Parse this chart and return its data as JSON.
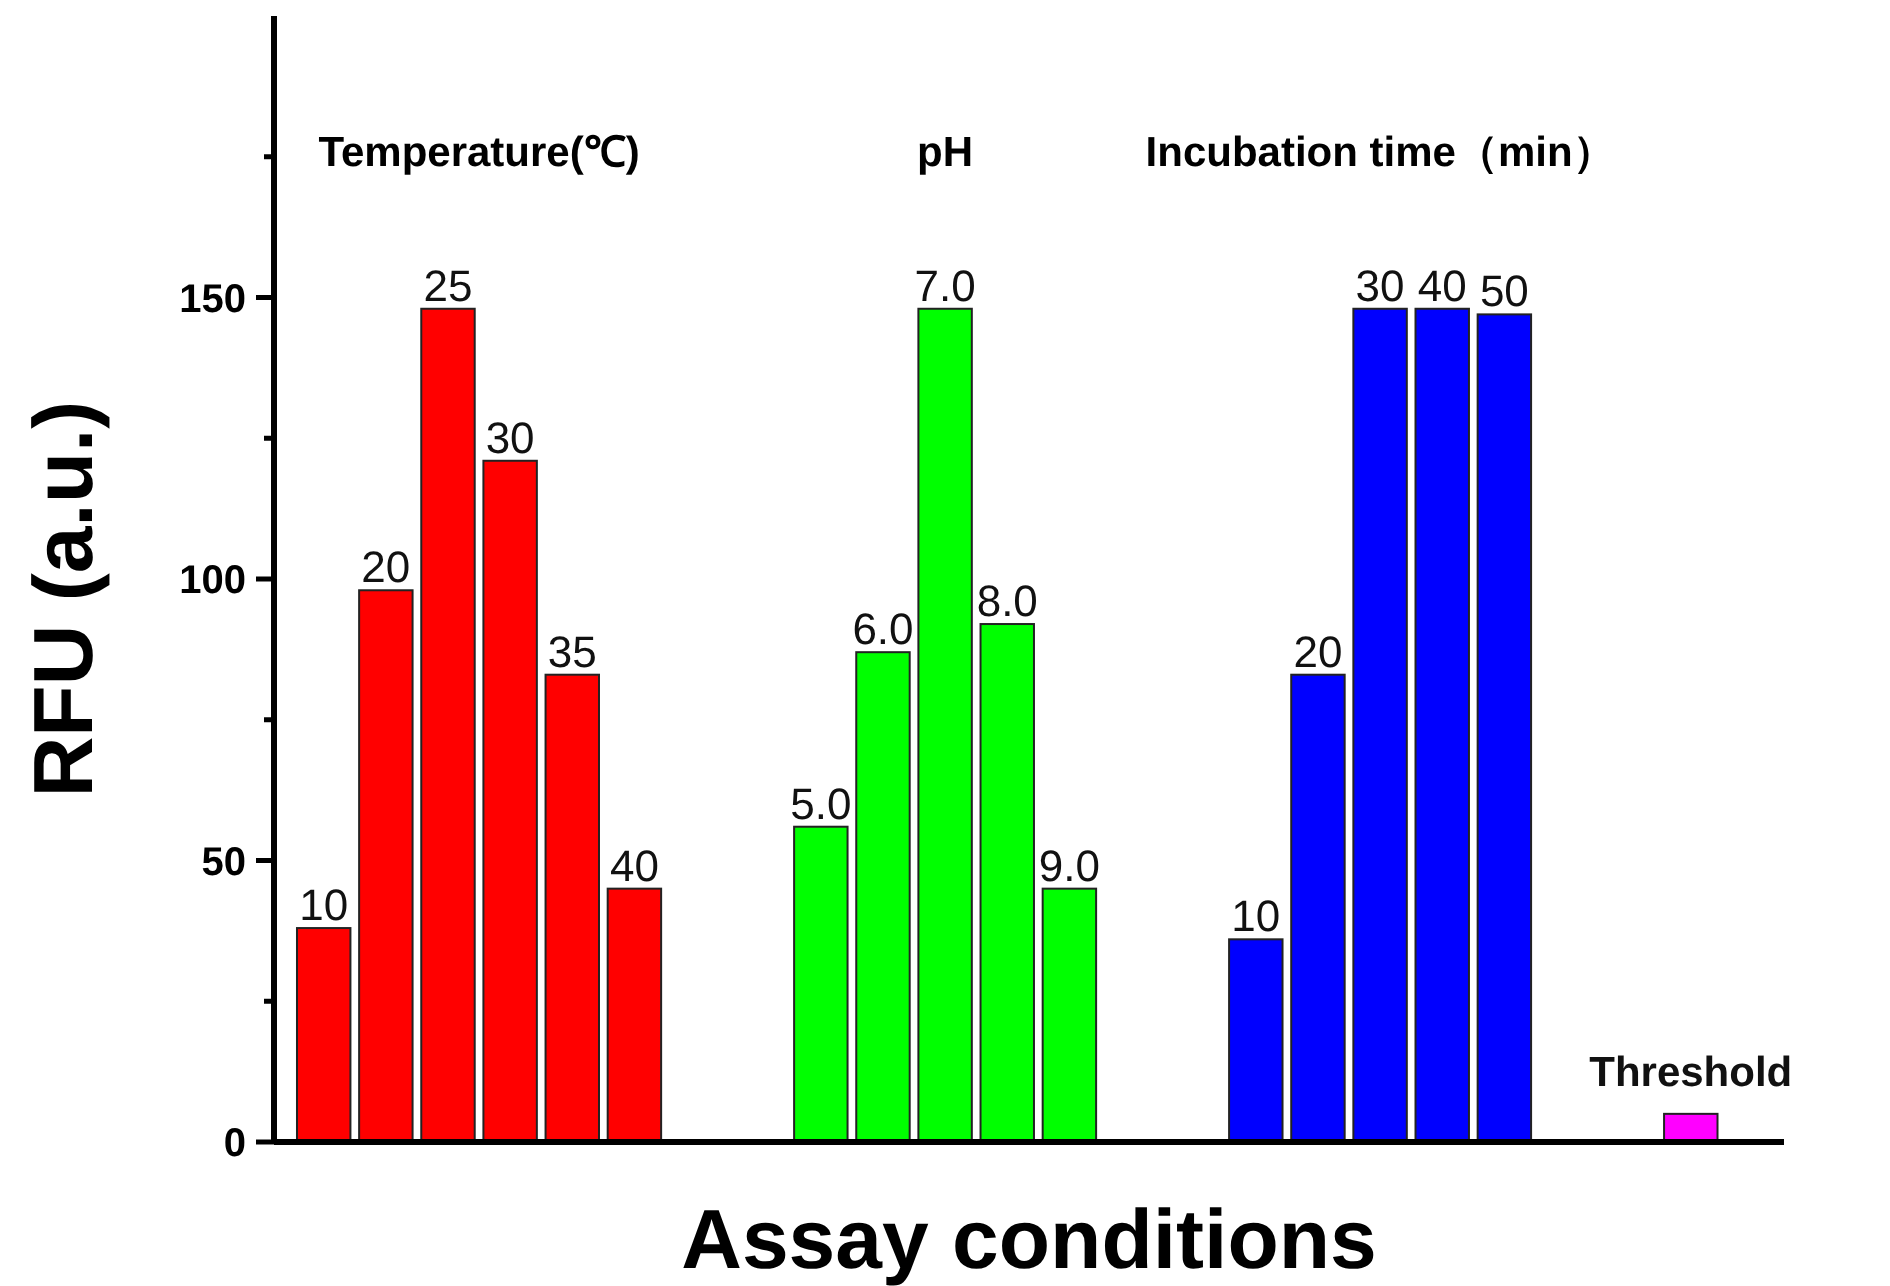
{
  "chart_data": {
    "type": "bar",
    "xlabel": "Assay conditions",
    "ylabel": "RFU (a.u.)",
    "categories": [
      "10",
      "20",
      "25",
      "30",
      "35",
      "40",
      null,
      null,
      "5.0",
      "6.0",
      "7.0",
      "8.0",
      "9.0",
      null,
      null,
      "10",
      "20",
      "30",
      "40",
      "50",
      null,
      null,
      "Threshold",
      null
    ],
    "series": [
      {
        "color": "#ff0000",
        "values": [
          38,
          98,
          148,
          121,
          83,
          45,
          null,
          null,
          null,
          null,
          null,
          null,
          null,
          null,
          null,
          null,
          null,
          null,
          null,
          null,
          null,
          null,
          null,
          null
        ]
      },
      {
        "color": "#00ff00",
        "values": [
          null,
          null,
          null,
          null,
          null,
          null,
          null,
          null,
          56,
          87,
          148,
          92,
          45,
          null,
          null,
          null,
          null,
          null,
          null,
          null,
          null,
          null,
          null,
          null
        ]
      },
      {
        "color": "#0000ff",
        "values": [
          null,
          null,
          null,
          null,
          null,
          null,
          null,
          null,
          null,
          null,
          null,
          null,
          null,
          null,
          null,
          36,
          83,
          148,
          148,
          147,
          null,
          null,
          null,
          null
        ]
      },
      {
        "color": "#ff00ff",
        "values": [
          null,
          null,
          null,
          null,
          null,
          null,
          null,
          null,
          null,
          null,
          null,
          null,
          null,
          null,
          null,
          null,
          null,
          null,
          null,
          null,
          null,
          null,
          5,
          null
        ]
      }
    ],
    "ylim": [
      0,
      200
    ],
    "yticks": [
      0,
      50,
      100,
      150,
      {
        "value": 25,
        "label": null
      },
      {
        "value": 75,
        "label": null
      },
      {
        "value": 125,
        "label": null
      },
      {
        "value": 175,
        "label": null
      }
    ],
    "annotations": [
      "Temperature(℃)",
      "pH",
      "Incubation time（min）"
    ]
  }
}
